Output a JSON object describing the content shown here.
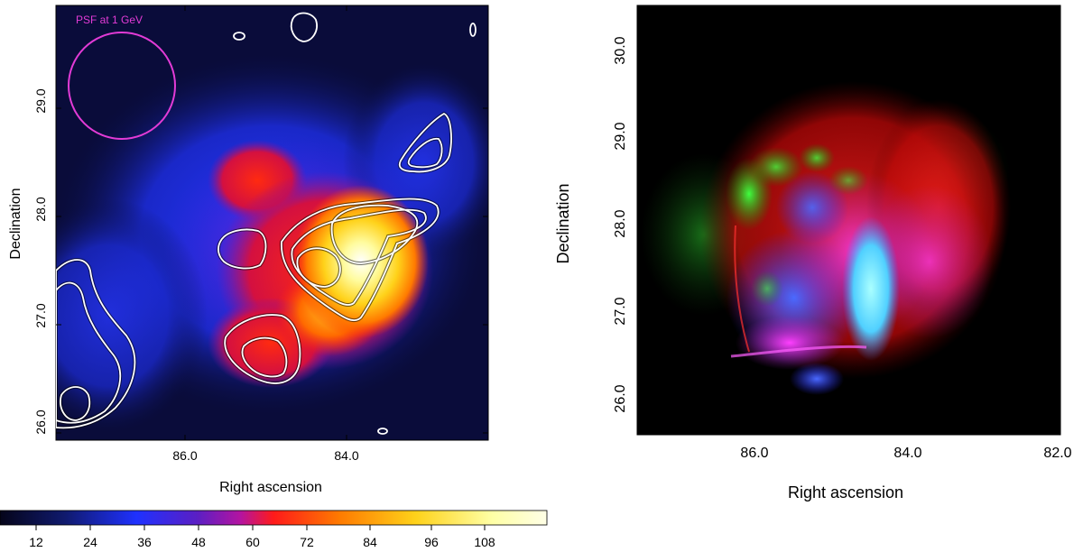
{
  "left_panel": {
    "psf_label": "PSF at 1 GeV",
    "psf_color": "#e23bd6",
    "contour_color": "#ffffff",
    "x_ticks": [
      "86.0",
      "84.0"
    ],
    "y_ticks": [
      "26.0",
      "27.0",
      "28.0",
      "29.0"
    ],
    "xlabel": "Right ascension",
    "ylabel": "Declination"
  },
  "right_panel": {
    "x_ticks": [
      "86.0",
      "84.0",
      "82.0"
    ],
    "y_ticks": [
      "26.0",
      "27.0",
      "28.0",
      "29.0",
      "30.0"
    ],
    "xlabel": "Right ascension",
    "ylabel": "Declination",
    "channel_colors": [
      "#ff1a1a",
      "#22dd22",
      "#2a3cff"
    ]
  },
  "colorbar": {
    "ticks": [
      "12",
      "24",
      "36",
      "48",
      "60",
      "72",
      "84",
      "96",
      "108"
    ],
    "colors": [
      "#05051a",
      "#101a6e",
      "#1f31ff",
      "#5a1fc4",
      "#b414a0",
      "#ff1a1a",
      "#ff7a00",
      "#ffd21a",
      "#ffffa6",
      "#ffffe6"
    ]
  }
}
